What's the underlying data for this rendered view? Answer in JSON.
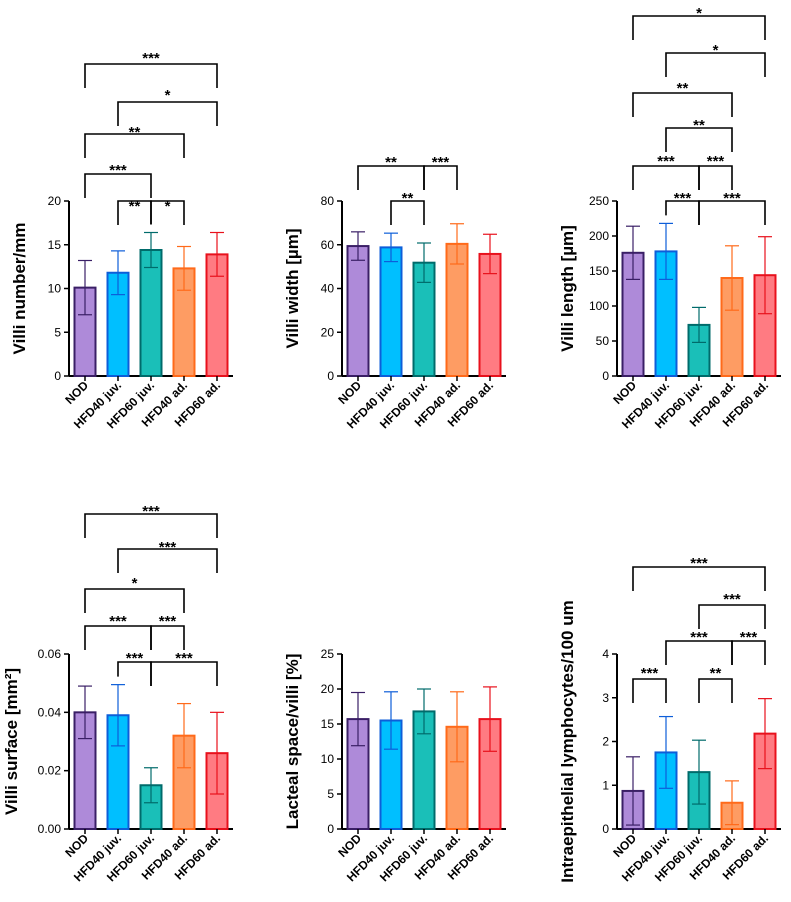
{
  "chart_data": [
    {
      "type": "bar",
      "ylabel": "Villi number/mm",
      "categories": [
        "NOD",
        "HFD40 juv.",
        "HFD60 juv.",
        "HFD40 ad.",
        "HFD60 ad."
      ],
      "values": [
        10.1,
        11.8,
        14.4,
        12.3,
        13.9
      ],
      "errors": [
        3.1,
        2.5,
        2.0,
        2.5,
        2.5
      ],
      "ylim": [
        0,
        20
      ],
      "yticks": [
        "0",
        "5",
        "10",
        "15",
        "20"
      ],
      "significance": [
        {
          "a": 0,
          "b": 4,
          "label": "***"
        },
        {
          "a": 1,
          "b": 4,
          "label": "*"
        },
        {
          "a": 0,
          "b": 3,
          "label": "**"
        },
        {
          "a": 0,
          "b": 2,
          "label": "***"
        },
        {
          "a": 1,
          "b": 2,
          "label": "**"
        },
        {
          "a": 2,
          "b": 3,
          "label": "*"
        }
      ]
    },
    {
      "type": "bar",
      "ylabel": "Villi width [µm]",
      "categories": [
        "NOD",
        "HFD40 juv.",
        "HFD60 juv.",
        "HFD40 ad.",
        "HFD60 ad."
      ],
      "values": [
        59.4,
        58.8,
        51.8,
        60.4,
        55.8
      ],
      "errors": [
        6.5,
        6.5,
        9.0,
        9.2,
        9.0
      ],
      "ylim": [
        0,
        80
      ],
      "yticks": [
        "0",
        "20",
        "40",
        "60",
        "80"
      ],
      "significance": [
        {
          "a": 0,
          "b": 2,
          "label": "**"
        },
        {
          "a": 2,
          "b": 3,
          "label": "***"
        },
        {
          "a": 1,
          "b": 2,
          "label": "**"
        }
      ]
    },
    {
      "type": "bar",
      "ylabel": "Villi length [µm]",
      "categories": [
        "NOD",
        "HFD40 juv.",
        "HFD60 juv.",
        "HFD40 ad.",
        "HFD60 ad."
      ],
      "values": [
        176,
        178,
        73,
        140,
        144
      ],
      "errors": [
        38,
        40,
        25,
        46,
        55
      ],
      "ylim": [
        0,
        250
      ],
      "yticks": [
        "0",
        "50",
        "100",
        "150",
        "200",
        "250"
      ],
      "significance": [
        {
          "a": 0,
          "b": 4,
          "label": "*"
        },
        {
          "a": 1,
          "b": 4,
          "label": "*"
        },
        {
          "a": 0,
          "b": 3,
          "label": "**"
        },
        {
          "a": 1,
          "b": 3,
          "label": "**"
        },
        {
          "a": 0,
          "b": 2,
          "label": "***"
        },
        {
          "a": 2,
          "b": 3,
          "label": "***"
        },
        {
          "a": 1,
          "b": 2,
          "label": "***"
        },
        {
          "a": 2,
          "b": 4,
          "label": "***"
        }
      ]
    },
    {
      "type": "bar",
      "ylabel": "Villi surface [mm²]",
      "categories": [
        "NOD",
        "HFD40 juv.",
        "HFD60 juv.",
        "HFD40 ad.",
        "HFD60 ad."
      ],
      "values": [
        0.04,
        0.039,
        0.015,
        0.032,
        0.026
      ],
      "errors": [
        0.009,
        0.0105,
        0.006,
        0.011,
        0.014
      ],
      "ylim": [
        0,
        0.06
      ],
      "yticks": [
        "0.00",
        "0.02",
        "0.04",
        "0.06"
      ],
      "significance": [
        {
          "a": 0,
          "b": 4,
          "label": "***"
        },
        {
          "a": 1,
          "b": 4,
          "label": "***"
        },
        {
          "a": 0,
          "b": 3,
          "label": "*"
        },
        {
          "a": 0,
          "b": 2,
          "label": "***"
        },
        {
          "a": 2,
          "b": 3,
          "label": "***"
        },
        {
          "a": 1,
          "b": 2,
          "label": "***"
        },
        {
          "a": 2,
          "b": 4,
          "label": "***"
        }
      ]
    },
    {
      "type": "bar",
      "ylabel": "Lacteal space/villi [%]",
      "categories": [
        "NOD",
        "HFD40 juv.",
        "HFD60 juv.",
        "HFD40 ad.",
        "HFD60 ad."
      ],
      "values": [
        15.7,
        15.5,
        16.8,
        14.6,
        15.7
      ],
      "errors": [
        3.8,
        4.1,
        3.2,
        5.0,
        4.6
      ],
      "ylim": [
        0,
        25
      ],
      "yticks": [
        "0",
        "5",
        "10",
        "15",
        "20",
        "25"
      ],
      "significance": []
    },
    {
      "type": "bar",
      "ylabel": "Intraepithelial lymphocytes/100 um",
      "categories": [
        "NOD",
        "HFD40 juv.",
        "HFD60 juv.",
        "HFD40 ad.",
        "HFD60 ad."
      ],
      "values": [
        0.87,
        1.75,
        1.3,
        0.6,
        2.18
      ],
      "errors": [
        0.78,
        0.82,
        0.73,
        0.5,
        0.8
      ],
      "ylim": [
        0,
        4
      ],
      "yticks": [
        "0",
        "1",
        "2",
        "3",
        "4"
      ],
      "significance": [
        {
          "a": 0,
          "b": 4,
          "label": "***"
        },
        {
          "a": 2,
          "b": 4,
          "label": "***"
        },
        {
          "a": 1,
          "b": 3,
          "label": "***"
        },
        {
          "a": 3,
          "b": 4,
          "label": "***"
        },
        {
          "a": 0,
          "b": 1,
          "label": "***"
        },
        {
          "a": 2,
          "b": 3,
          "label": "**"
        }
      ]
    }
  ],
  "colors": {
    "fill": [
      "#ae8ad9",
      "#00bfff",
      "#1abfb8",
      "#fe9c63",
      "#ff7b82"
    ],
    "edge": [
      "#3a1f66",
      "#0d5ed9",
      "#006b6b",
      "#ff6a1a",
      "#e8111c"
    ],
    "axis": "#000000"
  }
}
